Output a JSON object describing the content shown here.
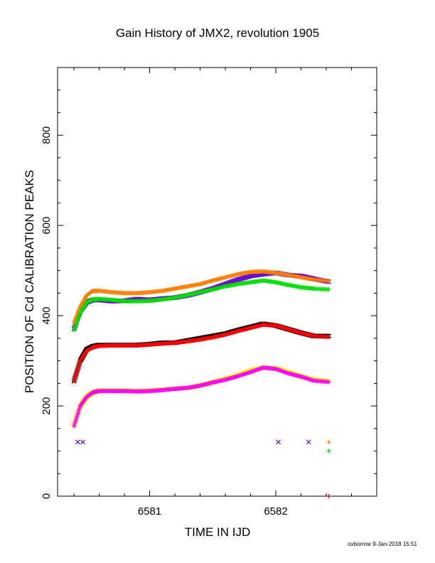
{
  "chart_data": {
    "type": "scatter",
    "title": "Gain History of JMX2, revolution 1905",
    "xlabel": "TIME IN IJD",
    "ylabel": "POSITION OF Cd CALIBRATION PEAKS",
    "xlim": [
      6580.27,
      6582.8
    ],
    "ylim": [
      0,
      950
    ],
    "x_ticks": [
      "6581",
      "6582"
    ],
    "y_ticks": [
      "0",
      "200",
      "400",
      "600",
      "800"
    ],
    "grid": false,
    "credit": "oxborrow  9-Jan-2018 15:51",
    "series": [
      {
        "marker": "x",
        "color": "#6a0dca",
        "x": [
          6580.4,
          6580.45,
          6580.5,
          6580.55,
          6580.6,
          6580.7,
          6580.8,
          6580.9,
          6581.0,
          6581.1,
          6581.2,
          6581.3,
          6581.4,
          6581.5,
          6581.6,
          6581.7,
          6581.8,
          6581.9,
          6582.0,
          6582.1,
          6582.2,
          6582.3,
          6582.42
        ],
        "y": [
          370,
          410,
          430,
          435,
          435,
          432,
          433,
          437,
          435,
          438,
          440,
          445,
          452,
          460,
          470,
          480,
          488,
          492,
          495,
          490,
          488,
          482,
          475
        ]
      },
      {
        "marker": "+",
        "color": "#ff7f00",
        "x": [
          6580.4,
          6580.45,
          6580.5,
          6580.55,
          6580.6,
          6580.7,
          6580.8,
          6580.9,
          6581.0,
          6581.1,
          6581.2,
          6581.3,
          6581.4,
          6581.5,
          6581.6,
          6581.7,
          6581.8,
          6581.9,
          6582.0,
          6582.1,
          6582.2,
          6582.3,
          6582.42
        ],
        "y": [
          385,
          420,
          445,
          455,
          455,
          452,
          450,
          450,
          452,
          455,
          460,
          465,
          470,
          478,
          485,
          492,
          497,
          498,
          495,
          490,
          485,
          480,
          477
        ]
      },
      {
        "marker": "+",
        "color": "#00dd00",
        "x": [
          6580.4,
          6580.45,
          6580.5,
          6580.55,
          6580.6,
          6580.7,
          6580.8,
          6580.9,
          6581.0,
          6581.1,
          6581.2,
          6581.3,
          6581.4,
          6581.5,
          6581.6,
          6581.7,
          6581.8,
          6581.9,
          6582.0,
          6582.1,
          6582.2,
          6582.3,
          6582.42
        ],
        "y": [
          368,
          405,
          430,
          436,
          437,
          435,
          432,
          432,
          433,
          436,
          440,
          446,
          452,
          458,
          465,
          470,
          474,
          478,
          474,
          468,
          463,
          460,
          458
        ]
      },
      {
        "marker": "x",
        "color": "#000000",
        "x": [
          6580.4,
          6580.45,
          6580.5,
          6580.55,
          6580.6,
          6580.7,
          6580.8,
          6580.9,
          6581.0,
          6581.1,
          6581.2,
          6581.3,
          6581.4,
          6581.5,
          6581.6,
          6581.7,
          6581.8,
          6581.9,
          6582.0,
          6582.1,
          6582.2,
          6582.3,
          6582.42
        ],
        "y": [
          255,
          300,
          325,
          332,
          335,
          335,
          335,
          335,
          337,
          340,
          340,
          345,
          350,
          355,
          360,
          368,
          375,
          382,
          378,
          370,
          362,
          355,
          355
        ]
      },
      {
        "marker": "+",
        "color": "#ff0000",
        "x": [
          6580.4,
          6580.45,
          6580.5,
          6580.55,
          6580.6,
          6580.7,
          6580.8,
          6580.9,
          6581.0,
          6581.1,
          6581.2,
          6581.3,
          6581.4,
          6581.5,
          6581.6,
          6581.7,
          6581.8,
          6581.9,
          6582.0,
          6582.1,
          6582.2,
          6582.3,
          6582.42
        ],
        "y": [
          255,
          300,
          322,
          330,
          333,
          334,
          334,
          334,
          336,
          338,
          340,
          343,
          347,
          352,
          358,
          366,
          373,
          380,
          378,
          370,
          362,
          355,
          353
        ]
      },
      {
        "marker": "x",
        "color": "#ffee00",
        "x": [
          6580.4,
          6580.45,
          6580.5,
          6580.55,
          6580.6,
          6580.7,
          6580.8,
          6580.9,
          6581.0,
          6581.1,
          6581.2,
          6581.3,
          6581.4,
          6581.5,
          6581.6,
          6581.7,
          6581.8,
          6581.9,
          6582.0,
          6582.1,
          6582.2,
          6582.3,
          6582.42
        ],
        "y": [
          155,
          200,
          220,
          230,
          234,
          234,
          234,
          233,
          234,
          236,
          238,
          240,
          245,
          252,
          260,
          268,
          278,
          285,
          283,
          275,
          265,
          258,
          255
        ]
      },
      {
        "marker": "+",
        "color": "#ff00ff",
        "x": [
          6580.4,
          6580.45,
          6580.5,
          6580.55,
          6580.6,
          6580.7,
          6580.8,
          6580.9,
          6581.0,
          6581.1,
          6581.2,
          6581.3,
          6581.4,
          6581.5,
          6581.6,
          6581.7,
          6581.8,
          6581.9,
          6582.0,
          6582.1,
          6582.2,
          6582.3,
          6582.42
        ],
        "y": [
          155,
          200,
          220,
          230,
          233,
          233,
          233,
          232,
          233,
          235,
          238,
          240,
          245,
          252,
          258,
          266,
          275,
          285,
          282,
          272,
          265,
          256,
          253
        ]
      },
      {
        "marker": "x",
        "color": "#6a0dca",
        "x": [
          6580.43,
          6580.47,
          6582.02,
          6582.26
        ],
        "y": [
          120,
          120,
          120,
          120
        ]
      },
      {
        "marker": "+",
        "color": "#ff7f00",
        "x": [
          6582.42
        ],
        "y": [
          120
        ]
      },
      {
        "marker": "+",
        "color": "#00dd00",
        "x": [
          6582.42
        ],
        "y": [
          100
        ]
      },
      {
        "marker": "+",
        "color": "#ff0000",
        "x": [
          6582.42
        ],
        "y": [
          0
        ]
      }
    ]
  }
}
